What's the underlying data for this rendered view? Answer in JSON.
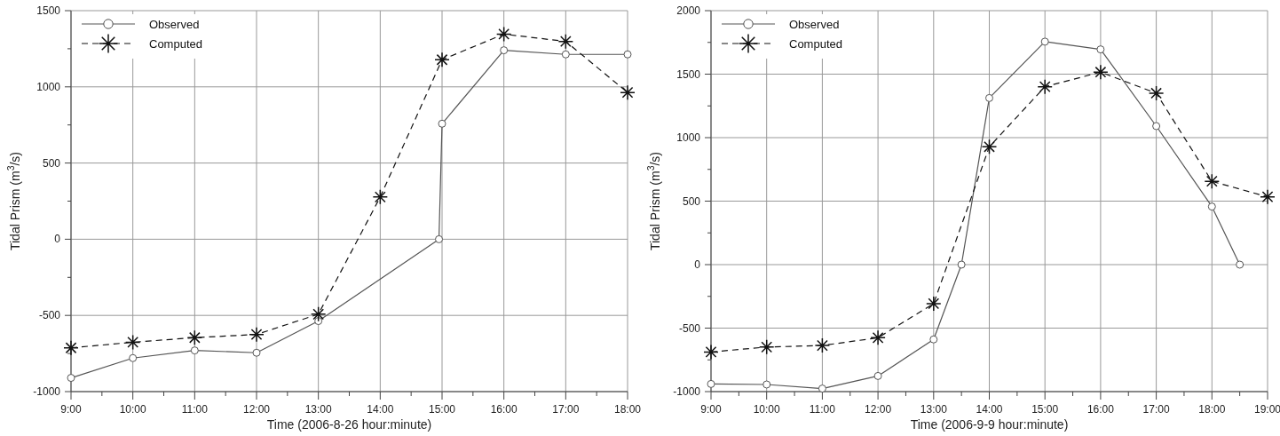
{
  "chart_data": [
    {
      "type": "line",
      "xlabel": "Time (2006-8-26 hour:minute)",
      "ylabel": "Tidal Prism (m$^{3}$/s)",
      "xlim": [
        9,
        18
      ],
      "ylim": [
        -1000,
        1500
      ],
      "xticks": [
        {
          "value": 9,
          "label": "9:00"
        },
        {
          "value": 9.5,
          "label": null
        },
        {
          "value": 10,
          "label": "10:00"
        },
        {
          "value": 10.5,
          "label": null
        },
        {
          "value": 11,
          "label": "11:00"
        },
        {
          "value": 11.5,
          "label": null
        },
        {
          "value": 12,
          "label": "12:00"
        },
        {
          "value": 12.5,
          "label": null
        },
        {
          "value": 13,
          "label": "13:00"
        },
        {
          "value": 13.5,
          "label": null
        },
        {
          "value": 14,
          "label": "14:00"
        },
        {
          "value": 14.5,
          "label": null
        },
        {
          "value": 15,
          "label": "15:00"
        },
        {
          "value": 15.5,
          "label": null
        },
        {
          "value": 16,
          "label": "16:00"
        },
        {
          "value": 16.5,
          "label": null
        },
        {
          "value": 17,
          "label": "17:00"
        },
        {
          "value": 17.5,
          "label": null
        },
        {
          "value": 18,
          "label": "18:00"
        }
      ],
      "yticks": [
        -1000,
        {
          "value": -750,
          "label": null
        },
        -500,
        {
          "value": -250,
          "label": null
        },
        0,
        {
          "value": 250,
          "label": null
        },
        500,
        {
          "value": 750,
          "label": null
        },
        1000,
        {
          "value": 1250,
          "label": null
        },
        1500
      ],
      "grid": true,
      "legend": "top left",
      "series": [
        {
          "name": "Observed",
          "color": "#555555",
          "marker": "circle",
          "line_style": "solid",
          "x": [
            9,
            10,
            11,
            12,
            13,
            14.95,
            15,
            16,
            17,
            18
          ],
          "values": [
            -910,
            -780,
            -730,
            -745,
            -537,
            0,
            758,
            1240,
            1213,
            1213
          ]
        },
        {
          "name": "Computed",
          "color": "#111111",
          "marker": "cross",
          "line_style": "dashed",
          "x": [
            9,
            10,
            11,
            12,
            13,
            14,
            15,
            16,
            17,
            18
          ],
          "values": [
            -713,
            -676,
            -646,
            -625,
            -492,
            277,
            1178,
            1346,
            1298,
            963
          ]
        }
      ]
    },
    {
      "type": "line",
      "xlabel": "Time (2006-9-9 hour:minute)",
      "ylabel": "Tidal Prism (m$^{3}$/s)",
      "xlim": [
        9,
        19
      ],
      "ylim": [
        -1000,
        2000
      ],
      "xticks": [
        {
          "value": 9,
          "label": "9:00"
        },
        {
          "value": 9.5,
          "label": null
        },
        {
          "value": 10,
          "label": "10:00"
        },
        {
          "value": 10.5,
          "label": null
        },
        {
          "value": 11,
          "label": "11:00"
        },
        {
          "value": 11.5,
          "label": null
        },
        {
          "value": 12,
          "label": "12:00"
        },
        {
          "value": 12.5,
          "label": null
        },
        {
          "value": 13,
          "label": "13:00"
        },
        {
          "value": 13.5,
          "label": null
        },
        {
          "value": 14,
          "label": "14:00"
        },
        {
          "value": 14.5,
          "label": null
        },
        {
          "value": 15,
          "label": "15:00"
        },
        {
          "value": 15.5,
          "label": null
        },
        {
          "value": 16,
          "label": "16:00"
        },
        {
          "value": 16.5,
          "label": null
        },
        {
          "value": 17,
          "label": "17:00"
        },
        {
          "value": 17.5,
          "label": null
        },
        {
          "value": 18,
          "label": "18:00"
        },
        {
          "value": 18.5,
          "label": null
        },
        {
          "value": 19,
          "label": "19:00"
        }
      ],
      "yticks": [
        -1000,
        {
          "value": -750,
          "label": null
        },
        -500,
        {
          "value": -250,
          "label": null
        },
        0,
        {
          "value": 250,
          "label": null
        },
        500,
        {
          "value": 750,
          "label": null
        },
        1000,
        {
          "value": 1250,
          "label": null
        },
        1500,
        {
          "value": 1750,
          "label": null
        },
        2000
      ],
      "grid": true,
      "legend": "top left",
      "series": [
        {
          "name": "Observed",
          "color": "#555555",
          "marker": "circle",
          "line_style": "solid",
          "x": [
            9,
            10,
            11,
            12,
            13,
            13.5,
            14,
            15,
            16,
            17,
            18,
            18.5
          ],
          "values": [
            -940,
            -944,
            -976,
            -877,
            -589,
            0,
            1312,
            1756,
            1695,
            1091,
            457,
            0
          ]
        },
        {
          "name": "Computed",
          "color": "#111111",
          "marker": "cross",
          "line_style": "dashed",
          "x": [
            9,
            10,
            11,
            12,
            13,
            14,
            15,
            16,
            17,
            18,
            19
          ],
          "values": [
            -688,
            -649,
            -637,
            -576,
            -307,
            928,
            1401,
            1516,
            1350,
            656,
            534
          ]
        }
      ]
    }
  ]
}
